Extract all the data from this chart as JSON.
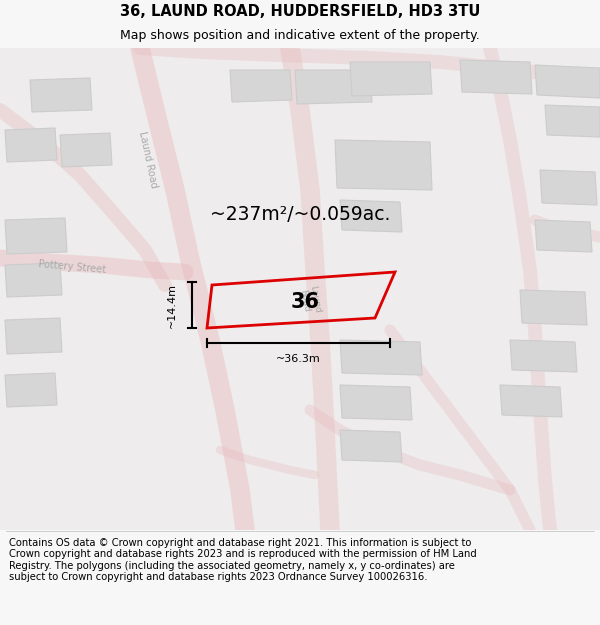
{
  "title": "36, LAUND ROAD, HUDDERSFIELD, HD3 3TU",
  "subtitle": "Map shows position and indicative extent of the property.",
  "area_label": "~237m²/~0.059ac.",
  "number_label": "36",
  "dim_width": "~36.3m",
  "dim_height": "~14.4m",
  "footer": "Contains OS data © Crown copyright and database right 2021. This information is subject to Crown copyright and database rights 2023 and is reproduced with the permission of HM Land Registry. The polygons (including the associated geometry, namely x, y co-ordinates) are subject to Crown copyright and database rights 2023 Ordnance Survey 100026316.",
  "bg_color": "#f7f7f7",
  "map_bg": "#eeecec",
  "road_color": "#e8b4b8",
  "building_fill": "#d6d6d6",
  "building_edge": "#cccccc",
  "highlight_color": "#dd0000",
  "title_fontsize": 10.5,
  "subtitle_fontsize": 9,
  "footer_fontsize": 7.2,
  "label_color": "#aaaaaa",
  "road_label_color": "#aaaaaa"
}
